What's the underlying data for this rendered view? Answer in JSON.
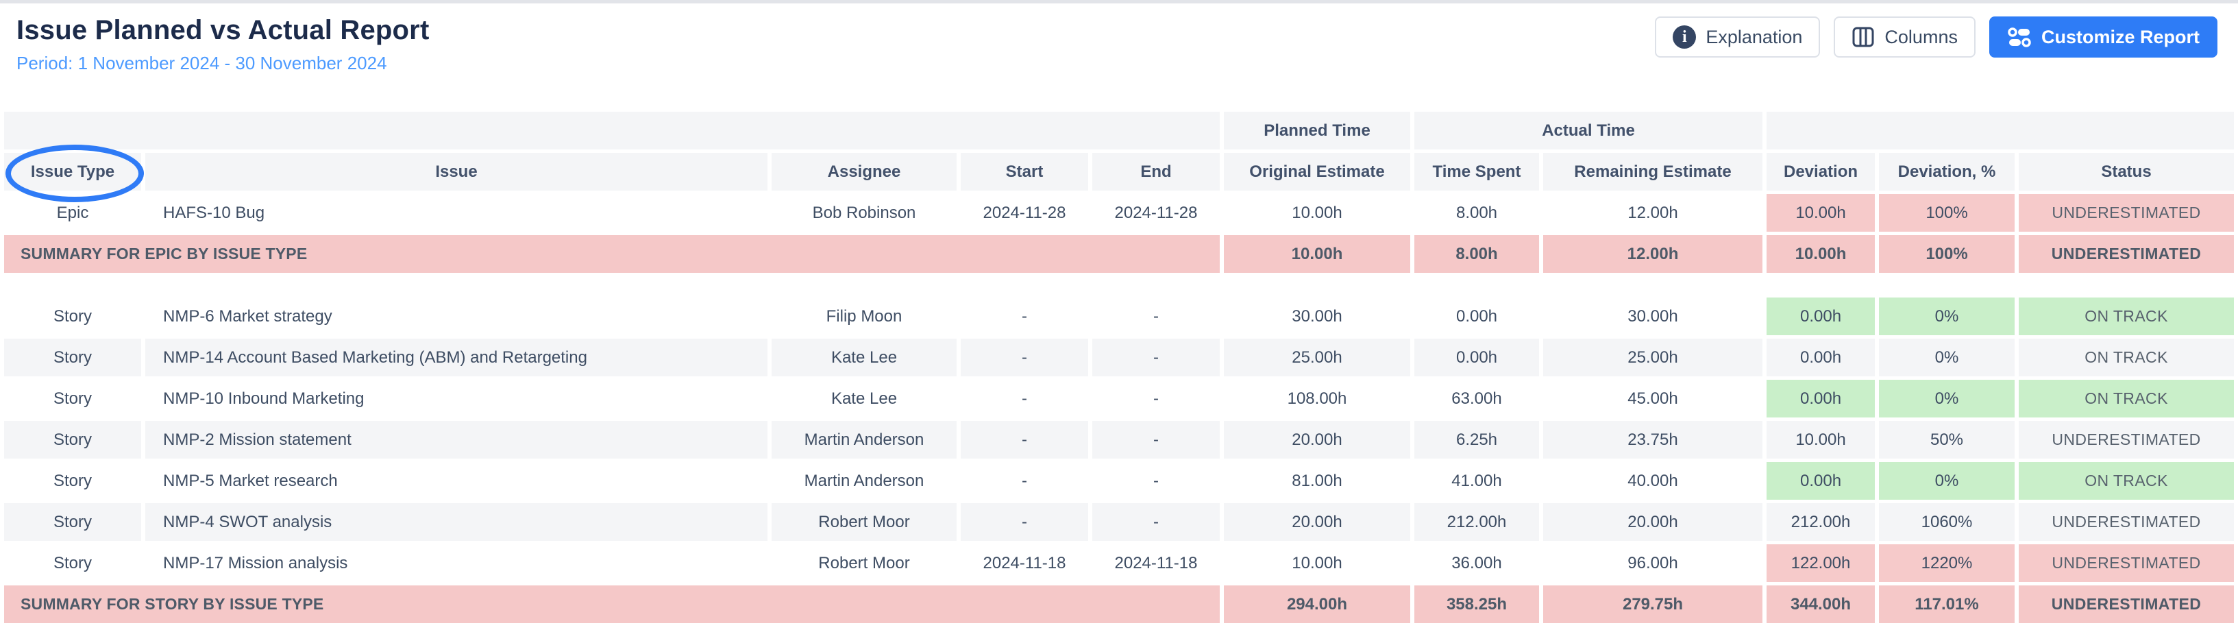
{
  "header": {
    "title": "Issue Planned vs Actual Report",
    "subtitle": "Period: 1 November 2024 - 30 November 2024",
    "buttons": {
      "explanation": "Explanation",
      "columns": "Columns",
      "customize": "Customize Report"
    }
  },
  "table": {
    "groups": {
      "planned": "Planned Time",
      "actual": "Actual Time"
    },
    "columns": [
      "Issue Type",
      "Issue",
      "Assignee",
      "Start",
      "End",
      "Original Estimate",
      "Time Spent",
      "Remaining Estimate",
      "Deviation",
      "Deviation, %",
      "Status"
    ],
    "rows": [
      {
        "type": "Epic",
        "issue": "HAFS-10 Bug",
        "assignee": "Bob Robinson",
        "start": "2024-11-28",
        "end": "2024-11-28",
        "original": "10.00h",
        "spent": "8.00h",
        "remaining": "12.00h",
        "deviation": "10.00h",
        "deviation_pct": "100%",
        "status": "UNDERESTIMATED",
        "tone": "bad",
        "striped": false
      },
      {
        "summary": true,
        "label": "SUMMARY FOR EPIC BY ISSUE TYPE",
        "original": "10.00h",
        "spent": "8.00h",
        "remaining": "12.00h",
        "deviation": "10.00h",
        "deviation_pct": "100%",
        "status": "UNDERESTIMATED"
      },
      {
        "spacer": true
      },
      {
        "type": "Story",
        "issue": "NMP-6 Market strategy",
        "assignee": "Filip Moon",
        "start": "-",
        "end": "-",
        "original": "30.00h",
        "spent": "0.00h",
        "remaining": "30.00h",
        "deviation": "0.00h",
        "deviation_pct": "0%",
        "status": "ON TRACK",
        "tone": "good",
        "striped": false
      },
      {
        "type": "Story",
        "issue": "NMP-14 Account Based Marketing (ABM) and Retargeting",
        "assignee": "Kate Lee",
        "start": "-",
        "end": "-",
        "original": "25.00h",
        "spent": "0.00h",
        "remaining": "25.00h",
        "deviation": "0.00h",
        "deviation_pct": "0%",
        "status": "ON TRACK",
        "tone": "good",
        "striped": true
      },
      {
        "type": "Story",
        "issue": "NMP-10 Inbound Marketing",
        "assignee": "Kate Lee",
        "start": "-",
        "end": "-",
        "original": "108.00h",
        "spent": "63.00h",
        "remaining": "45.00h",
        "deviation": "0.00h",
        "deviation_pct": "0%",
        "status": "ON TRACK",
        "tone": "good",
        "striped": false
      },
      {
        "type": "Story",
        "issue": "NMP-2 Mission statement",
        "assignee": "Martin Anderson",
        "start": "-",
        "end": "-",
        "original": "20.00h",
        "spent": "6.25h",
        "remaining": "23.75h",
        "deviation": "10.00h",
        "deviation_pct": "50%",
        "status": "UNDERESTIMATED",
        "tone": "bad",
        "striped": true
      },
      {
        "type": "Story",
        "issue": "NMP-5 Market research",
        "assignee": "Martin Anderson",
        "start": "-",
        "end": "-",
        "original": "81.00h",
        "spent": "41.00h",
        "remaining": "40.00h",
        "deviation": "0.00h",
        "deviation_pct": "0%",
        "status": "ON TRACK",
        "tone": "good",
        "striped": false
      },
      {
        "type": "Story",
        "issue": "NMP-4 SWOT analysis",
        "assignee": "Robert Moor",
        "start": "-",
        "end": "-",
        "original": "20.00h",
        "spent": "212.00h",
        "remaining": "20.00h",
        "deviation": "212.00h",
        "deviation_pct": "1060%",
        "status": "UNDERESTIMATED",
        "tone": "bad",
        "striped": true
      },
      {
        "type": "Story",
        "issue": "NMP-17 Mission analysis",
        "assignee": "Robert Moor",
        "start": "2024-11-18",
        "end": "2024-11-18",
        "original": "10.00h",
        "spent": "36.00h",
        "remaining": "96.00h",
        "deviation": "122.00h",
        "deviation_pct": "1220%",
        "status": "UNDERESTIMATED",
        "tone": "bad",
        "striped": false
      },
      {
        "summary": true,
        "label": "SUMMARY FOR STORY BY ISSUE TYPE",
        "original": "294.00h",
        "spent": "358.25h",
        "remaining": "279.75h",
        "deviation": "344.00h",
        "deviation_pct": "117.01%",
        "status": "UNDERESTIMATED"
      }
    ]
  },
  "annotation": {
    "shape": "ellipse",
    "around": "Issue Type"
  },
  "colors": {
    "title_navy": "#1c2b4a",
    "subtitle_blue": "#4c9aff",
    "primary_button_blue": "#2e7cf6",
    "header_gray": "#f4f5f7",
    "bad_pink": "#f6caca",
    "good_green": "#c9efc9",
    "summary_pink": "#f5c8c8",
    "annotation_blue": "#2f7bf6"
  }
}
